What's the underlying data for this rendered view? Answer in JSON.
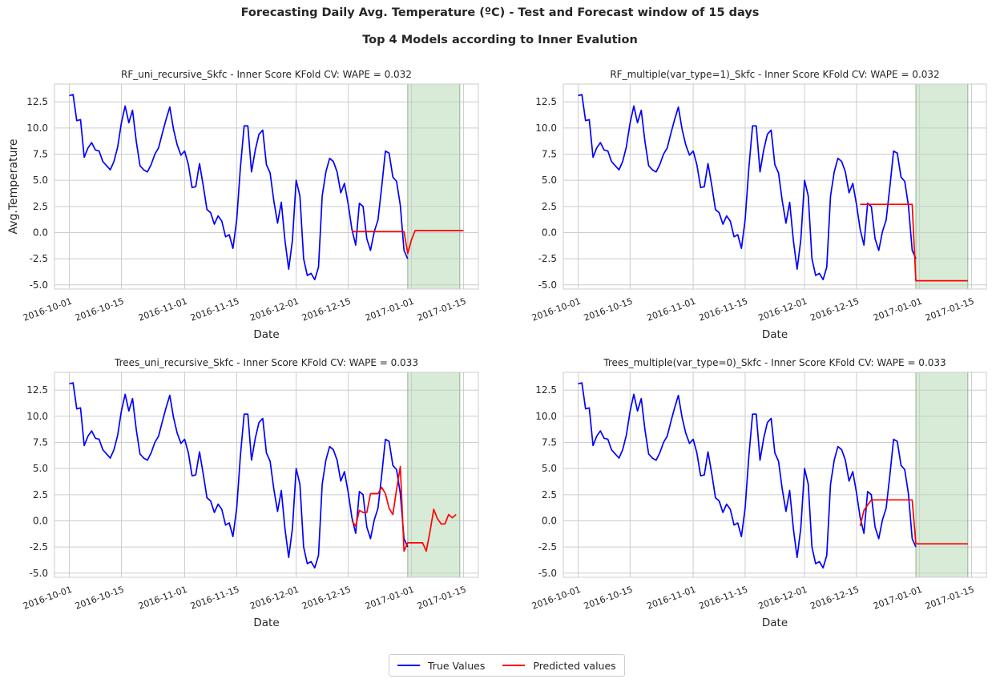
{
  "figure": {
    "suptitle": "Forecasting Daily Avg. Temperature (ºC) - Test and Forecast window of 15 days",
    "subtitle": "Top 4 Models according to Inner Evalution"
  },
  "colors": {
    "true_values": "#0000ff",
    "predicted": "#ff0000",
    "forecast_window": "#d7ebd7",
    "grid": "#cccccc"
  },
  "legend": {
    "true_label": "True Values",
    "pred_label": "Predicted values"
  },
  "chart_data": [
    {
      "type": "line",
      "title": "RF_uni_recursive_Skfc - Inner Score KFold CV: WAPE = 0.032",
      "xlabel": "Date",
      "ylabel": "Avg.Temperature",
      "xlim": [
        "2016-09-27",
        "2017-01-19"
      ],
      "ylim": [
        -5.4,
        14.2
      ],
      "xticks": [
        "2016-10-01",
        "2016-10-15",
        "2016-11-01",
        "2016-11-15",
        "2016-12-01",
        "2016-12-15",
        "2017-01-01",
        "2017-01-15"
      ],
      "yticks": [
        "-5.0",
        "-2.5",
        "0.0",
        "2.5",
        "5.0",
        "7.5",
        "10.0",
        "12.5"
      ],
      "forecast_window": [
        "2016-12-31",
        "2017-01-14"
      ],
      "grid": true,
      "series": [
        {
          "name": "True Values",
          "x_start": "2016-10-01",
          "values": [
            13.1,
            13.2,
            10.7,
            10.8,
            7.2,
            8.1,
            8.6,
            7.9,
            7.8,
            6.8,
            6.4,
            6.0,
            6.8,
            8.2,
            10.5,
            12.1,
            10.5,
            11.7,
            8.7,
            6.4,
            6.0,
            5.8,
            6.5,
            7.5,
            8.1,
            9.5,
            10.8,
            12.0,
            9.9,
            8.4,
            7.4,
            7.8,
            6.5,
            4.3,
            4.4,
            6.6,
            4.5,
            2.2,
            1.9,
            0.8,
            1.6,
            1.1,
            -0.4,
            -0.2,
            -1.5,
            1.2,
            6.2,
            10.2,
            10.2,
            5.8,
            7.9,
            9.4,
            9.8,
            6.5,
            5.7,
            3.0,
            0.9,
            2.9,
            -0.8,
            -3.5,
            -0.7,
            5.0,
            3.5,
            -2.5,
            -4.1,
            -3.9,
            -4.5,
            -3.3,
            3.5,
            5.8,
            7.1,
            6.8,
            5.8,
            3.8,
            4.7,
            2.7,
            0.3,
            -1.2,
            2.8,
            2.5,
            -0.6,
            -1.7,
            0.1,
            1.2,
            4.4,
            7.8,
            7.6,
            5.3,
            4.9,
            2.6,
            -1.7,
            -2.5
          ]
        },
        {
          "name": "Predicted values",
          "x_start": "2016-12-16",
          "values": [
            0.1,
            0.1,
            0.1,
            0.1,
            0.1,
            0.1,
            0.1,
            0.1,
            0.1,
            0.1,
            0.1,
            0.1,
            0.1,
            0.1,
            0.1,
            -2.0,
            -0.7,
            0.2,
            0.2,
            0.2,
            0.2,
            0.2,
            0.2,
            0.2,
            0.2,
            0.2,
            0.2,
            0.2,
            0.2,
            0.2,
            0.2
          ]
        }
      ]
    },
    {
      "type": "line",
      "title": "RF_multiple(var_type=1)_Skfc - Inner Score KFold CV: WAPE = 0.032",
      "xlabel": "Date",
      "ylabel": "",
      "xlim": [
        "2016-09-27",
        "2017-01-19"
      ],
      "ylim": [
        -5.4,
        14.2
      ],
      "xticks": [
        "2016-10-01",
        "2016-10-15",
        "2016-11-01",
        "2016-11-15",
        "2016-12-01",
        "2016-12-15",
        "2017-01-01",
        "2017-01-15"
      ],
      "yticks": [
        "-5.0",
        "-2.5",
        "0.0",
        "2.5",
        "5.0",
        "7.5",
        "10.0",
        "12.5"
      ],
      "forecast_window": [
        "2016-12-31",
        "2017-01-14"
      ],
      "grid": true,
      "series": [
        {
          "name": "True Values",
          "x_start": "2016-10-01",
          "values": [
            13.1,
            13.2,
            10.7,
            10.8,
            7.2,
            8.1,
            8.6,
            7.9,
            7.8,
            6.8,
            6.4,
            6.0,
            6.8,
            8.2,
            10.5,
            12.1,
            10.5,
            11.7,
            8.7,
            6.4,
            6.0,
            5.8,
            6.5,
            7.5,
            8.1,
            9.5,
            10.8,
            12.0,
            9.9,
            8.4,
            7.4,
            7.8,
            6.5,
            4.3,
            4.4,
            6.6,
            4.5,
            2.2,
            1.9,
            0.8,
            1.6,
            1.1,
            -0.4,
            -0.2,
            -1.5,
            1.2,
            6.2,
            10.2,
            10.2,
            5.8,
            7.9,
            9.4,
            9.8,
            6.5,
            5.7,
            3.0,
            0.9,
            2.9,
            -0.8,
            -3.5,
            -0.7,
            5.0,
            3.5,
            -2.5,
            -4.1,
            -3.9,
            -4.5,
            -3.3,
            3.5,
            5.8,
            7.1,
            6.8,
            5.8,
            3.8,
            4.7,
            2.7,
            0.3,
            -1.2,
            2.8,
            2.5,
            -0.6,
            -1.7,
            0.1,
            1.2,
            4.4,
            7.8,
            7.6,
            5.3,
            4.9,
            2.6,
            -1.7,
            -2.5
          ]
        },
        {
          "name": "Predicted values",
          "x_start": "2016-12-16",
          "values": [
            2.7,
            2.7,
            2.7,
            2.7,
            2.7,
            2.7,
            2.7,
            2.7,
            2.7,
            2.7,
            2.7,
            2.7,
            2.7,
            2.7,
            2.7,
            -4.6,
            -4.6,
            -4.6,
            -4.6,
            -4.6,
            -4.6,
            -4.6,
            -4.6,
            -4.6,
            -4.6,
            -4.6,
            -4.6,
            -4.6,
            -4.6,
            -4.6
          ]
        }
      ]
    },
    {
      "type": "line",
      "title": "Trees_uni_recursive_Skfc - Inner Score KFold CV: WAPE = 0.033",
      "xlabel": "Date",
      "ylabel": "",
      "xlim": [
        "2016-09-27",
        "2017-01-19"
      ],
      "ylim": [
        -5.4,
        14.2
      ],
      "xticks": [
        "2016-10-01",
        "2016-10-15",
        "2016-11-01",
        "2016-11-15",
        "2016-12-01",
        "2016-12-15",
        "2017-01-01",
        "2017-01-15"
      ],
      "yticks": [
        "-5.0",
        "-2.5",
        "0.0",
        "2.5",
        "5.0",
        "7.5",
        "10.0",
        "12.5"
      ],
      "forecast_window": [
        "2016-12-31",
        "2017-01-14"
      ],
      "grid": true,
      "series": [
        {
          "name": "True Values",
          "x_start": "2016-10-01",
          "values": [
            13.1,
            13.2,
            10.7,
            10.8,
            7.2,
            8.1,
            8.6,
            7.9,
            7.8,
            6.8,
            6.4,
            6.0,
            6.8,
            8.2,
            10.5,
            12.1,
            10.5,
            11.7,
            8.7,
            6.4,
            6.0,
            5.8,
            6.5,
            7.5,
            8.1,
            9.5,
            10.8,
            12.0,
            9.9,
            8.4,
            7.4,
            7.8,
            6.5,
            4.3,
            4.4,
            6.6,
            4.5,
            2.2,
            1.9,
            0.8,
            1.6,
            1.1,
            -0.4,
            -0.2,
            -1.5,
            1.2,
            6.2,
            10.2,
            10.2,
            5.8,
            7.9,
            9.4,
            9.8,
            6.5,
            5.7,
            3.0,
            0.9,
            2.9,
            -0.8,
            -3.5,
            -0.7,
            5.0,
            3.5,
            -2.5,
            -4.1,
            -3.9,
            -4.5,
            -3.3,
            3.5,
            5.8,
            7.1,
            6.8,
            5.8,
            3.8,
            4.7,
            2.7,
            0.3,
            -1.2,
            2.8,
            2.5,
            -0.6,
            -1.7,
            0.1,
            1.2,
            4.4,
            7.8,
            7.6,
            5.3,
            4.9,
            2.6,
            -1.7,
            -2.5
          ]
        },
        {
          "name": "Predicted values",
          "x_start": "2016-12-16",
          "values": [
            0.0,
            -0.5,
            1.0,
            0.8,
            0.8,
            2.6,
            2.6,
            2.6,
            3.2,
            2.6,
            1.2,
            0.6,
            3.0,
            5.2,
            -2.9,
            -2.1,
            -2.1,
            -2.1,
            -2.1,
            -2.1,
            -2.9,
            -1.0,
            1.1,
            0.2,
            -0.3,
            -0.3,
            0.6,
            0.3,
            0.6
          ]
        }
      ]
    },
    {
      "type": "line",
      "title": "Trees_multiple(var_type=0)_Skfc - Inner Score KFold CV: WAPE = 0.033",
      "xlabel": "Date",
      "ylabel": "",
      "xlim": [
        "2016-09-27",
        "2017-01-19"
      ],
      "ylim": [
        -5.4,
        14.2
      ],
      "xticks": [
        "2016-10-01",
        "2016-10-15",
        "2016-11-01",
        "2016-11-15",
        "2016-12-01",
        "2016-12-15",
        "2017-01-01",
        "2017-01-15"
      ],
      "yticks": [
        "-5.0",
        "-2.5",
        "0.0",
        "2.5",
        "5.0",
        "7.5",
        "10.0",
        "12.5"
      ],
      "forecast_window": [
        "2016-12-31",
        "2017-01-14"
      ],
      "grid": true,
      "series": [
        {
          "name": "True Values",
          "x_start": "2016-10-01",
          "values": [
            13.1,
            13.2,
            10.7,
            10.8,
            7.2,
            8.1,
            8.6,
            7.9,
            7.8,
            6.8,
            6.4,
            6.0,
            6.8,
            8.2,
            10.5,
            12.1,
            10.5,
            11.7,
            8.7,
            6.4,
            6.0,
            5.8,
            6.5,
            7.5,
            8.1,
            9.5,
            10.8,
            12.0,
            9.9,
            8.4,
            7.4,
            7.8,
            6.5,
            4.3,
            4.4,
            6.6,
            4.5,
            2.2,
            1.9,
            0.8,
            1.6,
            1.1,
            -0.4,
            -0.2,
            -1.5,
            1.2,
            6.2,
            10.2,
            10.2,
            5.8,
            7.9,
            9.4,
            9.8,
            6.5,
            5.7,
            3.0,
            0.9,
            2.9,
            -0.8,
            -3.5,
            -0.7,
            5.0,
            3.5,
            -2.5,
            -4.1,
            -3.9,
            -4.5,
            -3.3,
            3.5,
            5.8,
            7.1,
            6.8,
            5.8,
            3.8,
            4.7,
            2.7,
            0.3,
            -1.2,
            2.8,
            2.5,
            -0.6,
            -1.7,
            0.1,
            1.2,
            4.4,
            7.8,
            7.6,
            5.3,
            4.9,
            2.6,
            -1.7,
            -2.5
          ]
        },
        {
          "name": "Predicted values",
          "x_start": "2016-12-16",
          "values": [
            -0.5,
            1.0,
            1.5,
            2.0,
            2.0,
            2.0,
            2.0,
            2.0,
            2.0,
            2.0,
            2.0,
            2.0,
            2.0,
            2.0,
            2.0,
            -2.2,
            -2.2,
            -2.2,
            -2.2,
            -2.2,
            -2.2,
            -2.2,
            -2.2,
            -2.2,
            -2.2,
            -2.2,
            -2.2,
            -2.2,
            -2.2,
            -2.2
          ]
        }
      ]
    }
  ]
}
